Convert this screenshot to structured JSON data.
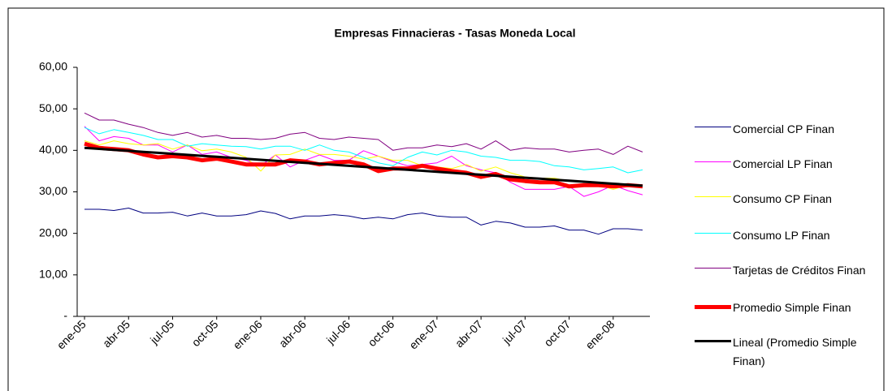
{
  "chart_data": {
    "type": "line",
    "title": "Empresas Finnacieras - Tasas Moneda Local",
    "categories": [
      "ene-05",
      null,
      null,
      "abr-05",
      null,
      null,
      "jul-05",
      null,
      null,
      "oct-05",
      null,
      null,
      "ene-06",
      null,
      null,
      "abr-06",
      null,
      null,
      "jul-06",
      null,
      null,
      "oct-06",
      null,
      null,
      "ene-07",
      null,
      null,
      "abr-07",
      null,
      null,
      "jul-07",
      null,
      null,
      "oct-07",
      null,
      null,
      "ene-08",
      null,
      null
    ],
    "ylim": [
      0,
      60
    ],
    "yticks": [
      {
        "value": 0,
        "label": "-"
      },
      {
        "value": 10,
        "label": "10,00"
      },
      {
        "value": 20,
        "label": "20,00"
      },
      {
        "value": 30,
        "label": "30,00"
      },
      {
        "value": 40,
        "label": "40,00"
      },
      {
        "value": 50,
        "label": "50,00"
      },
      {
        "value": 60,
        "label": "60,00"
      }
    ],
    "grid": false,
    "legend": "right",
    "series": [
      {
        "name": "Comercial CP Finan",
        "color": "#000080",
        "line_width": 1,
        "values": [
          25.8,
          25.8,
          25.5,
          26.1,
          24.9,
          24.9,
          25.1,
          24.2,
          24.9,
          24.2,
          24.2,
          24.5,
          25.4,
          24.8,
          23.5,
          24.2,
          24.2,
          24.5,
          24.2,
          23.5,
          23.9,
          23.5,
          24.5,
          24.9,
          24.2,
          23.9,
          23.9,
          22.0,
          22.9,
          22.5,
          21.5,
          21.5,
          21.8,
          20.8,
          20.8,
          19.8,
          21.1,
          21.1,
          20.8
        ]
      },
      {
        "name": "Comercial LP Finan",
        "color": "#ff00ff",
        "line_width": 1,
        "values": [
          45.8,
          42.3,
          43.3,
          42.9,
          41.3,
          41.3,
          39.6,
          41.3,
          39.0,
          39.6,
          38.3,
          37.6,
          36.3,
          38.9,
          36.0,
          37.6,
          38.9,
          37.6,
          37.6,
          39.9,
          38.6,
          37.3,
          36.3,
          36.6,
          37.0,
          38.6,
          36.3,
          35.3,
          34.6,
          32.3,
          30.6,
          30.6,
          30.6,
          31.3,
          28.9,
          30.0,
          31.6,
          30.3,
          29.3
        ]
      },
      {
        "name": "Consumo CP Finan",
        "color": "#ffff00",
        "line_width": 1,
        "values": [
          42.3,
          41.3,
          42.3,
          41.6,
          41.3,
          41.6,
          40.3,
          41.3,
          39.9,
          40.3,
          39.6,
          38.3,
          35.0,
          38.9,
          39.0,
          40.3,
          39.0,
          39.0,
          38.6,
          37.9,
          38.6,
          37.6,
          37.6,
          36.3,
          36.0,
          35.6,
          36.6,
          35.0,
          36.0,
          34.6,
          33.6,
          33.3,
          33.3,
          32.6,
          32.6,
          31.6,
          30.6,
          31.6,
          31.3
        ]
      },
      {
        "name": "Consumo LP Finan",
        "color": "#00ffff",
        "line_width": 1,
        "values": [
          45.5,
          44.0,
          45.0,
          44.3,
          43.6,
          42.6,
          42.6,
          41.0,
          41.6,
          41.3,
          41.0,
          40.9,
          40.3,
          41.0,
          41.0,
          40.0,
          41.3,
          40.0,
          39.6,
          38.3,
          37.0,
          36.3,
          38.3,
          39.6,
          38.9,
          40.0,
          39.6,
          38.6,
          38.3,
          37.6,
          37.6,
          37.3,
          36.3,
          36.0,
          35.3,
          35.6,
          36.0,
          34.6,
          35.3
        ]
      },
      {
        "name": "Tarjetas de Créditos Finan",
        "color": "#800080",
        "line_width": 1,
        "values": [
          49.0,
          47.3,
          47.3,
          46.3,
          45.5,
          44.3,
          43.6,
          44.3,
          43.2,
          43.6,
          42.9,
          42.9,
          42.6,
          42.9,
          43.9,
          44.3,
          42.9,
          42.6,
          43.2,
          42.9,
          42.6,
          40.0,
          40.6,
          40.6,
          41.3,
          40.9,
          41.6,
          40.3,
          42.3,
          40.0,
          40.6,
          40.3,
          40.3,
          39.6,
          40.0,
          40.3,
          39.0,
          41.0,
          39.6
        ]
      },
      {
        "name": "Promedio Simple Finan",
        "color": "#ff0000",
        "line_width": 5,
        "values": [
          41.6,
          40.6,
          40.3,
          40.0,
          39.0,
          38.3,
          38.6,
          38.3,
          37.6,
          38.0,
          37.3,
          36.6,
          36.6,
          36.6,
          37.6,
          37.3,
          36.6,
          37.0,
          37.3,
          36.6,
          35.0,
          35.6,
          35.6,
          36.3,
          35.6,
          35.0,
          34.6,
          33.6,
          34.3,
          33.0,
          32.6,
          32.3,
          32.3,
          31.3,
          31.6,
          31.6,
          31.3,
          31.6,
          31.3
        ]
      },
      {
        "name": "Lineal (Promedio Simple Finan)",
        "color": "#000000",
        "line_width": 3,
        "values": [
          40.6,
          40.36,
          40.12,
          39.88,
          39.64,
          39.4,
          39.16,
          38.92,
          38.68,
          38.44,
          38.2,
          37.96,
          37.72,
          37.48,
          37.24,
          37.0,
          36.76,
          36.52,
          36.28,
          36.04,
          35.8,
          35.56,
          35.32,
          35.08,
          34.84,
          34.6,
          34.36,
          34.12,
          33.88,
          33.64,
          33.4,
          33.16,
          32.92,
          32.68,
          32.44,
          32.2,
          31.96,
          31.72,
          31.48
        ]
      }
    ]
  }
}
